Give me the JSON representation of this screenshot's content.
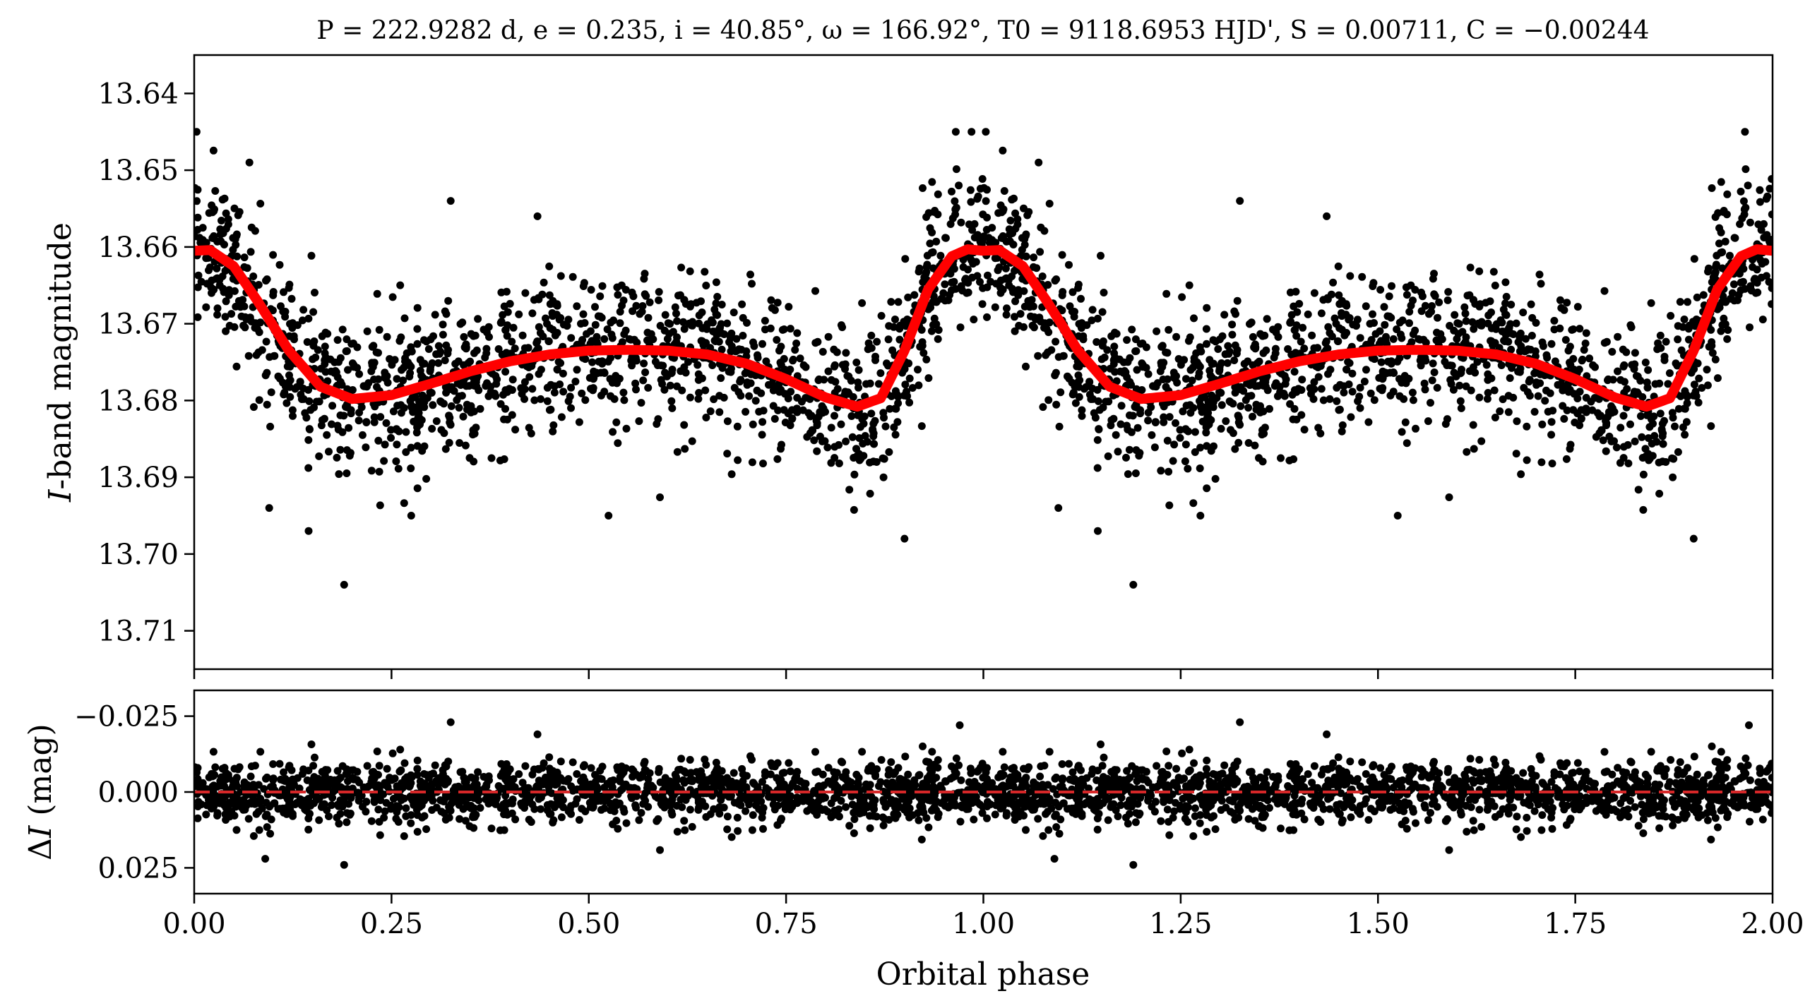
{
  "chart_data": [
    {
      "type": "scatter",
      "panel": "top",
      "title": "P = 222.9282 d, e = 0.235, i = 40.85°, ω = 166.92°, T0 = 9118.6953 HJD', S = 0.00711, C = −0.00244",
      "xlabel": "",
      "ylabel_prefix": "I",
      "ylabel_suffix": "-band magnitude",
      "xlim": [
        0.0,
        2.0
      ],
      "ylim": [
        13.715,
        13.635
      ],
      "y_inverted": true,
      "yticks": [
        "13.64",
        "13.65",
        "13.66",
        "13.67",
        "13.68",
        "13.69",
        "13.70",
        "13.71"
      ],
      "ytick_values": [
        13.64,
        13.65,
        13.66,
        13.67,
        13.68,
        13.69,
        13.7,
        13.71
      ],
      "grid": false,
      "series": [
        {
          "kind": "observations",
          "color": "#000000",
          "noise_sigma": 0.005,
          "points_per_phase": 1500,
          "outliers": [
            {
              "x": 0.003,
              "y": 13.645
            },
            {
              "x": 0.07,
              "y": 13.649
            },
            {
              "x": 0.19,
              "y": 13.704
            },
            {
              "x": 0.325,
              "y": 13.654
            },
            {
              "x": 0.435,
              "y": 13.656
            },
            {
              "x": 0.525,
              "y": 13.695
            },
            {
              "x": 0.965,
              "y": 13.645
            },
            {
              "x": 0.985,
              "y": 13.645
            },
            {
              "x": 0.9,
              "y": 13.698
            },
            {
              "x": 0.145,
              "y": 13.697
            },
            {
              "x": 0.095,
              "y": 13.694
            },
            {
              "x": 0.275,
              "y": 13.695
            },
            {
              "x": 1.003,
              "y": 13.645
            },
            {
              "x": 1.07,
              "y": 13.649
            },
            {
              "x": 1.19,
              "y": 13.704
            },
            {
              "x": 1.325,
              "y": 13.654
            },
            {
              "x": 1.435,
              "y": 13.656
            },
            {
              "x": 1.525,
              "y": 13.695
            },
            {
              "x": 1.965,
              "y": 13.645
            },
            {
              "x": 1.9,
              "y": 13.698
            },
            {
              "x": 1.145,
              "y": 13.697
            },
            {
              "x": 1.095,
              "y": 13.694
            },
            {
              "x": 1.275,
              "y": 13.695
            }
          ]
        },
        {
          "kind": "model",
          "color": "#ff0000",
          "x": [
            0.0,
            0.02,
            0.05,
            0.08,
            0.12,
            0.16,
            0.2,
            0.25,
            0.3,
            0.35,
            0.4,
            0.45,
            0.5,
            0.55,
            0.6,
            0.65,
            0.7,
            0.75,
            0.8,
            0.84,
            0.87,
            0.9,
            0.93,
            0.96,
            0.98,
            1.0,
            1.02,
            1.05,
            1.08,
            1.12,
            1.16,
            1.2,
            1.25,
            1.3,
            1.35,
            1.4,
            1.45,
            1.5,
            1.55,
            1.6,
            1.65,
            1.7,
            1.75,
            1.8,
            1.84,
            1.87,
            1.9,
            1.93,
            1.96,
            1.98,
            2.0
          ],
          "y": [
            13.6605,
            13.6604,
            13.6625,
            13.667,
            13.6735,
            13.6782,
            13.6798,
            13.6793,
            13.6778,
            13.6762,
            13.6749,
            13.674,
            13.6735,
            13.6734,
            13.6735,
            13.674,
            13.6752,
            13.6772,
            13.6796,
            13.6808,
            13.6797,
            13.6735,
            13.6655,
            13.6612,
            13.6603,
            13.6605,
            13.6604,
            13.6625,
            13.667,
            13.6735,
            13.6782,
            13.6798,
            13.6793,
            13.6778,
            13.6762,
            13.6749,
            13.674,
            13.6735,
            13.6734,
            13.6735,
            13.674,
            13.6752,
            13.6772,
            13.6796,
            13.6808,
            13.6797,
            13.6735,
            13.6655,
            13.6612,
            13.6603,
            13.6605
          ]
        }
      ]
    },
    {
      "type": "scatter",
      "panel": "bottom",
      "xlabel": "Orbital phase",
      "ylabel_prefix": "Δ",
      "ylabel_italic": "I",
      "ylabel_suffix": " (mag)",
      "xlim": [
        0.0,
        2.0
      ],
      "ylim": [
        0.0335,
        -0.0335
      ],
      "y_inverted": true,
      "xticks": [
        "0.00",
        "0.25",
        "0.50",
        "0.75",
        "1.00",
        "1.25",
        "1.50",
        "1.75",
        "2.00"
      ],
      "xtick_values": [
        0.0,
        0.25,
        0.5,
        0.75,
        1.0,
        1.25,
        1.5,
        1.75,
        2.0
      ],
      "yticks": [
        "−0.025",
        "0.000",
        "0.025"
      ],
      "ytick_values": [
        -0.025,
        0.0,
        0.025
      ],
      "grid": false,
      "series": [
        {
          "kind": "residuals",
          "color": "#000000",
          "noise_sigma": 0.005,
          "outliers": [
            {
              "x": 0.325,
              "y": -0.023
            },
            {
              "x": 0.97,
              "y": -0.022
            },
            {
              "x": 0.19,
              "y": 0.024
            },
            {
              "x": 1.325,
              "y": -0.023
            },
            {
              "x": 1.97,
              "y": -0.022
            },
            {
              "x": 1.19,
              "y": 0.024
            },
            {
              "x": 0.435,
              "y": -0.019
            },
            {
              "x": 1.435,
              "y": -0.019
            },
            {
              "x": 0.09,
              "y": 0.022
            },
            {
              "x": 1.09,
              "y": 0.022
            }
          ]
        },
        {
          "kind": "zero-line",
          "color": "#d62728",
          "style": "dashed",
          "y": 0.0
        }
      ]
    }
  ]
}
